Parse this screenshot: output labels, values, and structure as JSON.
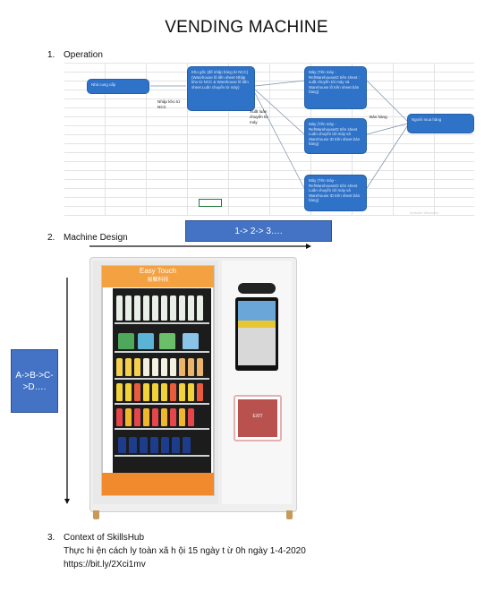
{
  "title": "VENDING MACHINE",
  "sections": {
    "s1_num": "1.",
    "s1": "Operation",
    "s2_num": "2.",
    "s2": "Machine Design",
    "s3_num": "3.",
    "s3": "Context of SkillsHub"
  },
  "diagram": {
    "supplier": "Nhà cung cấp",
    "warehouse": "Kho gốc (để nhập hàng từ NCC) (Warehouse lô tiền sheet Nhập kho từ NCC & Warehouse lô tiền sheet Luân chuyển từ máy)",
    "import_label": "Nhập kho từ NCC",
    "transfer_label": "Xuất luân chuyển từ máy",
    "machine1": "Máy (Tên máy - RefWarehouseID trên sheet : xuất chuyển tới máy và Warehouse lô trên sheet bán hàng)",
    "machine2": "Máy (Tên máy - RefWarehouseID trên sheet Luân chuyển tới máy và Warehouse ID trên sheet bán hàng)",
    "machine3": "Máy (Tên máy - RefWarehouseID trên sheet Luân chuyển tới máy và Warehouse ID trên sheet bán hàng)",
    "sell_label": "Bán hàng",
    "customer": "Người mua hàng",
    "watermark": "Activate Windows"
  },
  "design": {
    "horizontal_order": "1-> 2-> 3….",
    "vertical_order": "A->B->C->D….",
    "brand": "Easy Touch",
    "brand_sub": "易触科技",
    "exit_label": "EXIT"
  },
  "context": {
    "line1": "Thực hi ện cách ly toàn xã h      ội 15 ngày t   ừ 0h ngày 1-4-2020",
    "line2": "https://bit.ly/2Xci1mv"
  },
  "colors": {
    "node_fill": "#2f73c9",
    "order_box": "#4472c4",
    "brand_orange": "#f4a142"
  }
}
